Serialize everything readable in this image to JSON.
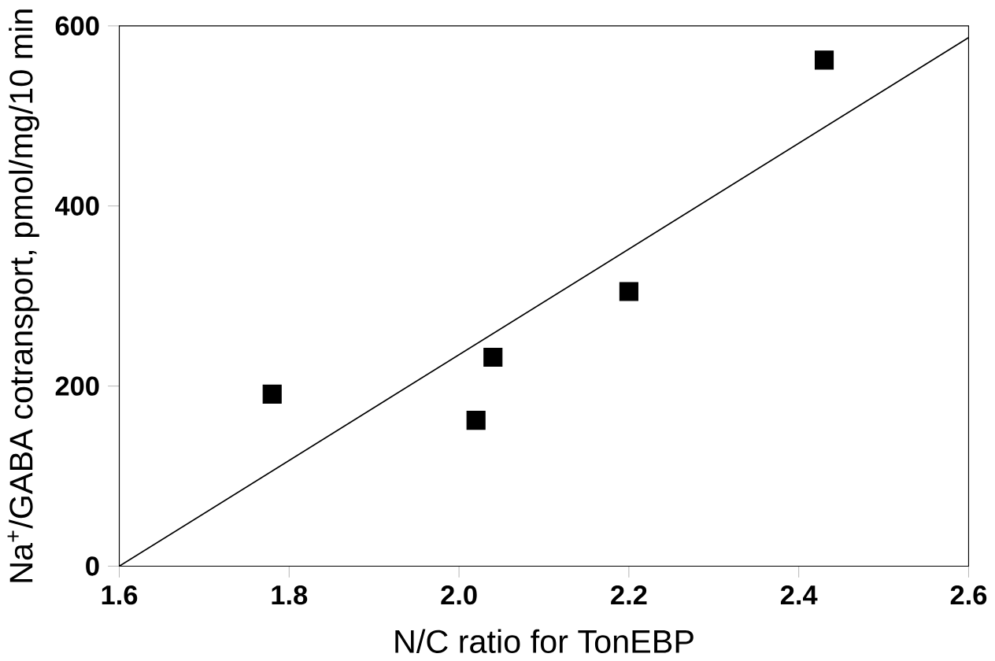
{
  "chart_data": {
    "type": "scatter",
    "xlabel": "N/C ratio for TonEBP",
    "ylabel": "Na$^{+}$/GABA cotransport, pmol/mg/10 min",
    "xlim": [
      1.6,
      2.6
    ],
    "ylim": [
      0,
      600
    ],
    "xticks": [
      {
        "value": 1.6,
        "label": "1.6"
      },
      {
        "value": 1.8,
        "label": "1.8"
      },
      {
        "value": 2.0,
        "label": "2.0"
      },
      {
        "value": 2.2,
        "label": "2.2"
      },
      {
        "value": 2.4,
        "label": "2.4"
      },
      {
        "value": 2.6,
        "label": "2.6"
      }
    ],
    "yticks": [
      0,
      200,
      400,
      600
    ],
    "marker": "square",
    "grid": false,
    "series": [
      {
        "color": "#000000",
        "x": [
          1.78,
          2.02,
          2.04,
          2.2,
          2.43
        ],
        "values": [
          191,
          162,
          232,
          305,
          562
        ]
      },
      {
        "type": "line",
        "marker": "none",
        "color": "#000000",
        "x": [
          1.6,
          2.6
        ],
        "values": [
          0,
          587
        ]
      }
    ]
  }
}
